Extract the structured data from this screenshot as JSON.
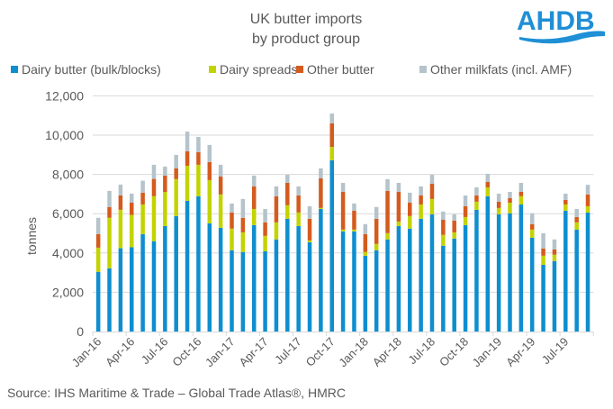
{
  "logo_text": "AHDB",
  "source": "Source: IHS Maritime & Trade – Global Trade Atlas®, HMRC",
  "colors": {
    "blue": "#0e8ecf",
    "yellow": "#c3d300",
    "orange": "#d45b1e",
    "grey": "#b5c3cb",
    "brand": "#1f8fd6"
  },
  "chart_data": {
    "type": "bar",
    "stacked": true,
    "title": [
      "UK butter imports",
      "by product group"
    ],
    "xlabel": "",
    "ylabel": "tonnes",
    "ylim": [
      0,
      12000
    ],
    "yticks": [
      0,
      2000,
      4000,
      6000,
      8000,
      10000,
      12000
    ],
    "ytick_labels": [
      "0",
      "2,000",
      "4,000",
      "6,000",
      "8,000",
      "10,000",
      "12,000"
    ],
    "grid": true,
    "legend_position": "top",
    "x_tick_labels": [
      "Jan-16",
      "Apr-16",
      "Jul-16",
      "Oct-16",
      "Jan-17",
      "Apr-17",
      "Jul-17",
      "Oct-17",
      "Jan-18",
      "Apr-18",
      "Jul-18",
      "Oct-18",
      "Jan-19",
      "Apr-19",
      "Jul-19"
    ],
    "categories": [
      "Jan-16",
      "Feb-16",
      "Mar-16",
      "Apr-16",
      "May-16",
      "Jun-16",
      "Jul-16",
      "Aug-16",
      "Sep-16",
      "Oct-16",
      "Nov-16",
      "Dec-16",
      "Jan-17",
      "Feb-17",
      "Mar-17",
      "Apr-17",
      "May-17",
      "Jun-17",
      "Jul-17",
      "Aug-17",
      "Sep-17",
      "Oct-17",
      "Nov-17",
      "Dec-17",
      "Jan-18",
      "Feb-18",
      "Mar-18",
      "Apr-18",
      "May-18",
      "Jun-18",
      "Jul-18",
      "Aug-18",
      "Sep-18",
      "Oct-18",
      "Nov-18",
      "Dec-18",
      "Jan-19",
      "Feb-19",
      "Mar-19",
      "Apr-19",
      "May-19",
      "Jun-19",
      "Jul-19",
      "Aug-19",
      "Sep-19"
    ],
    "series": [
      {
        "name": "Dairy butter (bulk/blocks)",
        "color": "#0e8ecf",
        "values": [
          3040,
          3220,
          4240,
          4290,
          4960,
          4600,
          5370,
          5880,
          6660,
          6890,
          5510,
          5280,
          4140,
          4050,
          5420,
          4090,
          4690,
          5740,
          5370,
          4550,
          6240,
          8720,
          5100,
          5100,
          3860,
          4140,
          4690,
          5370,
          5240,
          5740,
          5970,
          4370,
          4730,
          5420,
          6200,
          6890,
          5970,
          6020,
          6470,
          4780,
          3400,
          3590,
          6150,
          5190,
          6060
        ]
      },
      {
        "name": "Dairy spreads",
        "color": "#c3d300",
        "values": [
          1230,
          2570,
          1960,
          1650,
          1510,
          2290,
          1740,
          1880,
          1780,
          1600,
          2200,
          1700,
          1100,
          1000,
          820,
          780,
          870,
          690,
          690,
          90,
          50,
          680,
          90,
          90,
          190,
          320,
          320,
          230,
          640,
          730,
          780,
          550,
          320,
          410,
          410,
          450,
          320,
          540,
          420,
          410,
          460,
          320,
          320,
          370,
          320
        ]
      },
      {
        "name": "Other butter",
        "color": "#d45b1e",
        "values": [
          690,
          550,
          730,
          620,
          600,
          880,
          830,
          550,
          740,
          640,
          920,
          910,
          820,
          740,
          1150,
          690,
          1330,
          1140,
          870,
          1100,
          1510,
          1200,
          1920,
          960,
          910,
          1280,
          2150,
          1510,
          680,
          460,
          780,
          770,
          600,
          550,
          320,
          280,
          320,
          230,
          220,
          280,
          370,
          270,
          230,
          270,
          600
        ]
      },
      {
        "name": "Other milkfats (incl. AMF)",
        "color": "#b5c3cb",
        "values": [
          830,
          820,
          550,
          460,
          610,
          720,
          460,
          680,
          1000,
          780,
          870,
          600,
          460,
          960,
          550,
          680,
          500,
          410,
          460,
          640,
          510,
          500,
          460,
          370,
          510,
          600,
          600,
          460,
          510,
          460,
          450,
          420,
          320,
          550,
          410,
          410,
          410,
          320,
          460,
          550,
          780,
          510,
          320,
          410,
          490
        ]
      }
    ]
  }
}
